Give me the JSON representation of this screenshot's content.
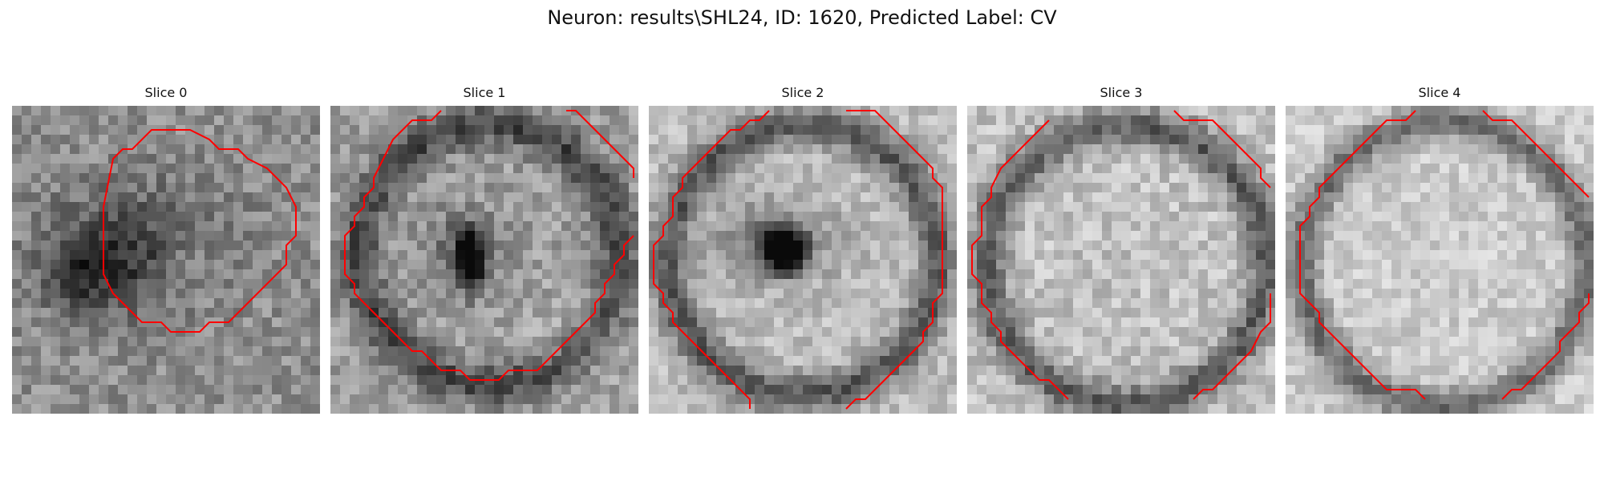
{
  "figure": {
    "title": "Neuron: results\\SHL24, ID: 1620, Predicted Label: CV",
    "contour_color": "#ff0000",
    "colormap": "grayscale",
    "grid_size": 32
  },
  "panels": [
    {
      "title": "Slice 0",
      "bg": 0.56,
      "noise": 0.13,
      "blobs": [
        {
          "cx": 10,
          "cy": 16,
          "rx": 7,
          "ry": 6,
          "a": -0.32
        },
        {
          "cx": 6.5,
          "cy": 17.5,
          "rx": 3,
          "ry": 2.5,
          "a": -0.22
        },
        {
          "cx": 17,
          "cy": 13,
          "rx": 8,
          "ry": 7,
          "a": -0.1
        },
        {
          "cx": 18,
          "cy": 17,
          "rx": 3,
          "ry": 3,
          "a": 0.1
        }
      ],
      "ring": null,
      "contours": [
        [
          [
            9.5,
            10.5
          ],
          [
            10.5,
            5.5
          ],
          [
            11.5,
            4.5
          ],
          [
            12.5,
            4.5
          ],
          [
            14.5,
            2.5
          ],
          [
            18.5,
            2.5
          ],
          [
            20.5,
            3.5
          ],
          [
            21.5,
            4.5
          ],
          [
            23.5,
            4.5
          ],
          [
            24.5,
            5.5
          ],
          [
            26.5,
            6.5
          ],
          [
            28.5,
            8.5
          ],
          [
            29.5,
            10.5
          ],
          [
            29.5,
            13.5
          ],
          [
            28.5,
            14.5
          ],
          [
            28.5,
            16.5
          ],
          [
            26.5,
            18.5
          ],
          [
            24.5,
            20.5
          ],
          [
            22.5,
            22.5
          ],
          [
            20.5,
            22.5
          ],
          [
            19.5,
            23.5
          ],
          [
            16.5,
            23.5
          ],
          [
            15.5,
            22.5
          ],
          [
            13.5,
            22.5
          ],
          [
            12.5,
            21.5
          ],
          [
            10.5,
            19.5
          ],
          [
            9.5,
            17.5
          ],
          [
            9.5,
            10.5
          ]
        ]
      ]
    },
    {
      "title": "Slice 1",
      "bg": 0.62,
      "noise": 0.13,
      "blobs": [
        {
          "cx": 14.5,
          "cy": 16,
          "rx": 1.2,
          "ry": 2.8,
          "a": -0.85
        },
        {
          "cx": 14,
          "cy": 15,
          "rx": 4,
          "ry": 4,
          "a": -0.25
        },
        {
          "cx": 25,
          "cy": 24,
          "rx": 5,
          "ry": 4,
          "a": 0.1
        }
      ],
      "ring": {
        "cx": 16.5,
        "cy": 15.5,
        "r": 13.5,
        "w": 2.2,
        "a": -0.35
      },
      "contours": [
        [
          [
            11.5,
            0.5
          ],
          [
            10.5,
            1.5
          ],
          [
            8.5,
            1.5
          ],
          [
            7.5,
            2.5
          ],
          [
            6.5,
            3.5
          ],
          [
            5.5,
            5.5
          ],
          [
            4.5,
            7.5
          ],
          [
            4.5,
            8.5
          ],
          [
            3.5,
            9.5
          ],
          [
            3.5,
            10.5
          ],
          [
            2.5,
            11.5
          ],
          [
            2.5,
            12.5
          ],
          [
            1.5,
            13.5
          ],
          [
            1.5,
            14.5
          ],
          [
            1.5,
            15.5
          ],
          [
            1.5,
            16.5
          ],
          [
            1.5,
            17.5
          ],
          [
            2.5,
            18.5
          ],
          [
            2.5,
            19.5
          ],
          [
            4.5,
            21.5
          ],
          [
            5.5,
            22.5
          ],
          [
            6.5,
            23.5
          ],
          [
            7.5,
            24.5
          ],
          [
            8.5,
            25.5
          ],
          [
            9.5,
            25.5
          ],
          [
            10.5,
            26.5
          ],
          [
            11.5,
            27.5
          ],
          [
            13.5,
            27.5
          ],
          [
            14.5,
            28.5
          ],
          [
            17.5,
            28.5
          ],
          [
            18.5,
            27.5
          ],
          [
            21.5,
            27.5
          ],
          [
            22.5,
            26.5
          ],
          [
            23.5,
            25.5
          ],
          [
            24.5,
            24.5
          ],
          [
            25.5,
            23.5
          ],
          [
            26.5,
            22.5
          ],
          [
            27.5,
            21.5
          ],
          [
            27.5,
            20.5
          ],
          [
            28.5,
            19.5
          ],
          [
            28.5,
            18.5
          ],
          [
            29.5,
            17.5
          ],
          [
            29.5,
            16.5
          ],
          [
            30.5,
            15.5
          ],
          [
            30.5,
            14.5
          ],
          [
            31.5,
            13.5
          ]
        ],
        [
          [
            24.5,
            0.5
          ],
          [
            25.5,
            0.5
          ],
          [
            26.5,
            1.5
          ],
          [
            27.5,
            2.5
          ],
          [
            28.5,
            3.5
          ],
          [
            29.5,
            4.5
          ],
          [
            30.5,
            5.5
          ],
          [
            31.5,
            6.5
          ],
          [
            31.5,
            7.5
          ]
        ]
      ]
    },
    {
      "title": "Slice 2",
      "bg": 0.74,
      "noise": 0.11,
      "blobs": [
        {
          "cx": 14,
          "cy": 15,
          "rx": 2,
          "ry": 2.2,
          "a": -0.9
        },
        {
          "cx": 13,
          "cy": 14,
          "rx": 6,
          "ry": 4,
          "a": -0.3
        }
      ],
      "ring": {
        "cx": 16,
        "cy": 16,
        "r": 14,
        "w": 2,
        "a": -0.4
      },
      "contours": [
        [
          [
            12.5,
            0.5
          ],
          [
            11.5,
            1.5
          ],
          [
            10.5,
            1.5
          ],
          [
            9.5,
            2.5
          ],
          [
            8.5,
            2.5
          ],
          [
            7.5,
            3.5
          ],
          [
            6.5,
            4.5
          ],
          [
            5.5,
            5.5
          ],
          [
            4.5,
            6.5
          ],
          [
            3.5,
            7.5
          ],
          [
            3.5,
            8.5
          ],
          [
            2.5,
            9.5
          ],
          [
            2.5,
            10.5
          ],
          [
            2.5,
            11.5
          ],
          [
            1.5,
            12.5
          ],
          [
            1.5,
            13.5
          ],
          [
            0.5,
            14.5
          ],
          [
            0.5,
            15.5
          ],
          [
            0.5,
            16.5
          ],
          [
            0.5,
            17.5
          ],
          [
            0.5,
            18.5
          ],
          [
            1.5,
            19.5
          ],
          [
            1.5,
            20.5
          ],
          [
            2.5,
            21.5
          ],
          [
            2.5,
            22.5
          ],
          [
            3.5,
            23.5
          ],
          [
            4.5,
            24.5
          ],
          [
            5.5,
            25.5
          ],
          [
            6.5,
            26.5
          ],
          [
            7.5,
            27.5
          ],
          [
            8.5,
            28.5
          ],
          [
            9.5,
            29.5
          ],
          [
            10.5,
            30.5
          ],
          [
            10.5,
            31.5
          ]
        ],
        [
          [
            20.5,
            0.5
          ],
          [
            21.5,
            0.5
          ],
          [
            22.5,
            0.5
          ],
          [
            23.5,
            0.5
          ],
          [
            24.5,
            1.5
          ],
          [
            25.5,
            2.5
          ],
          [
            26.5,
            3.5
          ],
          [
            27.5,
            4.5
          ],
          [
            28.5,
            5.5
          ],
          [
            29.5,
            6.5
          ],
          [
            29.5,
            7.5
          ],
          [
            30.5,
            8.5
          ],
          [
            30.5,
            9.5
          ],
          [
            30.5,
            10.5
          ],
          [
            30.5,
            11.5
          ],
          [
            30.5,
            12.5
          ],
          [
            30.5,
            13.5
          ],
          [
            30.5,
            14.5
          ],
          [
            30.5,
            15.5
          ],
          [
            30.5,
            16.5
          ],
          [
            30.5,
            17.5
          ],
          [
            30.5,
            18.5
          ],
          [
            30.5,
            19.5
          ],
          [
            29.5,
            20.5
          ],
          [
            29.5,
            21.5
          ],
          [
            29.5,
            22.5
          ],
          [
            28.5,
            23.5
          ],
          [
            28.5,
            24.5
          ],
          [
            27.5,
            25.5
          ],
          [
            26.5,
            26.5
          ],
          [
            25.5,
            27.5
          ],
          [
            24.5,
            28.5
          ],
          [
            23.5,
            29.5
          ],
          [
            22.5,
            30.5
          ],
          [
            21.5,
            30.5
          ],
          [
            20.5,
            31.5
          ]
        ]
      ]
    },
    {
      "title": "Slice 3",
      "bg": 0.76,
      "noise": 0.12,
      "blobs": [],
      "ring": {
        "cx": 16.5,
        "cy": 16.5,
        "r": 14.5,
        "w": 2,
        "a": -0.4
      },
      "contours": [
        [
          [
            8.5,
            1.5
          ],
          [
            7.5,
            2.5
          ],
          [
            6.5,
            3.5
          ],
          [
            5.5,
            4.5
          ],
          [
            4.5,
            5.5
          ],
          [
            3.5,
            6.5
          ],
          [
            2.5,
            8.5
          ],
          [
            2.5,
            9.5
          ],
          [
            1.5,
            10.5
          ],
          [
            1.5,
            11.5
          ],
          [
            1.5,
            12.5
          ],
          [
            1.5,
            13.5
          ],
          [
            0.5,
            14.5
          ],
          [
            0.5,
            15.5
          ],
          [
            0.5,
            16.5
          ],
          [
            0.5,
            17.5
          ],
          [
            1.5,
            18.5
          ],
          [
            1.5,
            19.5
          ],
          [
            1.5,
            20.5
          ],
          [
            2.5,
            21.5
          ],
          [
            2.5,
            22.5
          ],
          [
            3.5,
            23.5
          ],
          [
            3.5,
            24.5
          ],
          [
            4.5,
            25.5
          ],
          [
            5.5,
            26.5
          ],
          [
            6.5,
            27.5
          ],
          [
            7.5,
            28.5
          ],
          [
            8.5,
            28.5
          ],
          [
            9.5,
            29.5
          ],
          [
            10.5,
            30.5
          ]
        ],
        [
          [
            21.5,
            0.5
          ],
          [
            22.5,
            1.5
          ],
          [
            25.5,
            1.5
          ],
          [
            26.5,
            2.5
          ],
          [
            27.5,
            3.5
          ],
          [
            28.5,
            4.5
          ],
          [
            29.5,
            5.5
          ],
          [
            30.5,
            6.5
          ],
          [
            30.5,
            7.5
          ],
          [
            31.5,
            8.5
          ]
        ],
        [
          [
            31.5,
            19.5
          ],
          [
            31.5,
            22.5
          ],
          [
            30.5,
            23.5
          ],
          [
            29.5,
            25.5
          ],
          [
            28.5,
            26.5
          ],
          [
            27.5,
            27.5
          ],
          [
            26.5,
            28.5
          ],
          [
            25.5,
            29.5
          ],
          [
            24.5,
            29.5
          ],
          [
            23.5,
            30.5
          ]
        ]
      ]
    },
    {
      "title": "Slice 4",
      "bg": 0.8,
      "noise": 0.1,
      "blobs": [],
      "ring": {
        "cx": 16.5,
        "cy": 16.5,
        "r": 14.8,
        "w": 1.8,
        "a": -0.38
      },
      "contours": [
        [
          [
            13.5,
            0.5
          ],
          [
            12.5,
            1.5
          ],
          [
            10.5,
            1.5
          ],
          [
            9.5,
            2.5
          ],
          [
            8.5,
            3.5
          ],
          [
            7.5,
            4.5
          ],
          [
            6.5,
            5.5
          ],
          [
            5.5,
            6.5
          ],
          [
            4.5,
            7.5
          ],
          [
            3.5,
            8.5
          ],
          [
            3.5,
            9.5
          ],
          [
            2.5,
            10.5
          ],
          [
            2.5,
            11.5
          ],
          [
            1.5,
            12.5
          ],
          [
            1.5,
            13.5
          ],
          [
            1.5,
            14.5
          ],
          [
            1.5,
            15.5
          ],
          [
            1.5,
            16.5
          ],
          [
            1.5,
            17.5
          ],
          [
            1.5,
            18.5
          ],
          [
            1.5,
            19.5
          ],
          [
            2.5,
            20.5
          ],
          [
            3.5,
            21.5
          ],
          [
            3.5,
            22.5
          ],
          [
            4.5,
            23.5
          ],
          [
            5.5,
            24.5
          ],
          [
            6.5,
            25.5
          ],
          [
            7.5,
            26.5
          ],
          [
            8.5,
            27.5
          ],
          [
            9.5,
            28.5
          ],
          [
            10.5,
            29.5
          ],
          [
            13.5,
            29.5
          ],
          [
            14.5,
            30.5
          ]
        ],
        [
          [
            20.5,
            0.5
          ],
          [
            21.5,
            1.5
          ],
          [
            23.5,
            1.5
          ],
          [
            24.5,
            2.5
          ],
          [
            25.5,
            3.5
          ],
          [
            26.5,
            4.5
          ],
          [
            27.5,
            5.5
          ],
          [
            28.5,
            6.5
          ],
          [
            29.5,
            7.5
          ],
          [
            30.5,
            8.5
          ],
          [
            31.5,
            9.5
          ]
        ],
        [
          [
            31.5,
            19.5
          ],
          [
            31.5,
            20.5
          ],
          [
            30.5,
            21.5
          ],
          [
            30.5,
            22.5
          ],
          [
            29.5,
            23.5
          ],
          [
            28.5,
            24.5
          ],
          [
            28.5,
            25.5
          ],
          [
            27.5,
            26.5
          ],
          [
            26.5,
            27.5
          ],
          [
            25.5,
            28.5
          ],
          [
            24.5,
            29.5
          ],
          [
            23.5,
            29.5
          ],
          [
            22.5,
            30.5
          ]
        ]
      ]
    }
  ]
}
